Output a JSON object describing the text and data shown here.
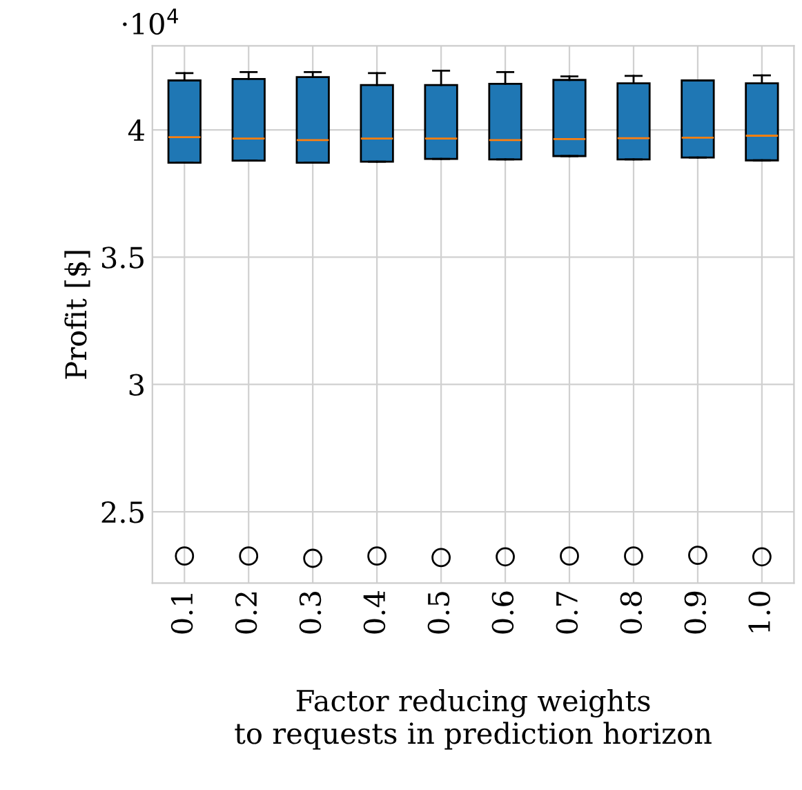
{
  "chart_data": {
    "type": "box",
    "xlabel": "Factor reducing weights\nto requests in prediction horizon",
    "ylabel": "Profit [$]",
    "categories": [
      "0.1",
      "0.2",
      "0.3",
      "0.4",
      "0.5",
      "0.6",
      "0.7",
      "0.8",
      "0.9",
      "1.0"
    ],
    "color": "#1f77b4",
    "grid": true,
    "ylim": [
      2.22,
      4.33
    ],
    "yticks": [
      2.5,
      3,
      3.5,
      4
    ],
    "annotations": [
      "·10$^{4}$"
    ],
    "boxes": [
      {
        "low": 3.871,
        "q1": 3.871,
        "median": 3.971,
        "q3": 4.194,
        "high": 4.223,
        "outliers": [
          2.326
        ]
      },
      {
        "low": 3.879,
        "q1": 3.879,
        "median": 3.966,
        "q3": 4.2,
        "high": 4.227,
        "outliers": [
          2.326
        ]
      },
      {
        "low": 3.871,
        "q1": 3.871,
        "median": 3.96,
        "q3": 4.207,
        "high": 4.227,
        "outliers": [
          2.317
        ]
      },
      {
        "low": 3.875,
        "q1": 3.875,
        "median": 3.966,
        "q3": 4.176,
        "high": 4.223,
        "outliers": [
          2.326
        ]
      },
      {
        "low": 3.886,
        "q1": 3.886,
        "median": 3.966,
        "q3": 4.176,
        "high": 4.232,
        "outliers": [
          2.32
        ]
      },
      {
        "low": 3.884,
        "q1": 3.884,
        "median": 3.96,
        "q3": 4.181,
        "high": 4.227,
        "outliers": [
          2.323
        ]
      },
      {
        "low": 3.897,
        "q1": 3.897,
        "median": 3.964,
        "q3": 4.196,
        "high": 4.21,
        "outliers": [
          2.326
        ]
      },
      {
        "low": 3.884,
        "q1": 3.884,
        "median": 3.967,
        "q3": 4.183,
        "high": 4.212,
        "outliers": [
          2.326
        ]
      },
      {
        "low": 3.891,
        "q1": 3.891,
        "median": 3.969,
        "q3": 4.194,
        "high": 4.194,
        "outliers": [
          2.329
        ]
      },
      {
        "low": 3.88,
        "q1": 3.88,
        "median": 3.977,
        "q3": 4.183,
        "high": 4.214,
        "outliers": [
          2.323
        ]
      }
    ]
  }
}
